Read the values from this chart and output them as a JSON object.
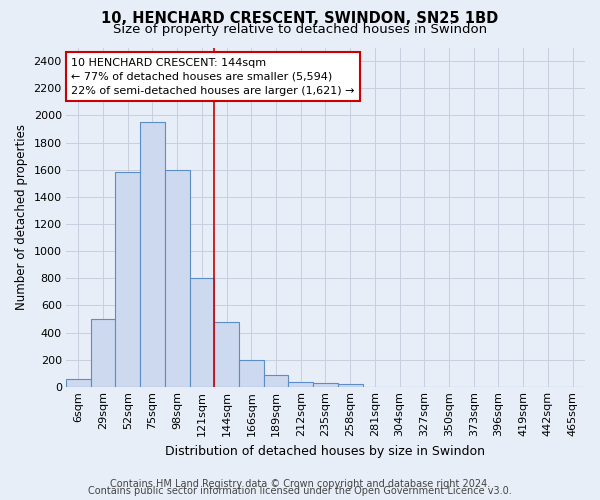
{
  "title1": "10, HENCHARD CRESCENT, SWINDON, SN25 1BD",
  "title2": "Size of property relative to detached houses in Swindon",
  "xlabel": "Distribution of detached houses by size in Swindon",
  "ylabel": "Number of detached properties",
  "categories": [
    "6sqm",
    "29sqm",
    "52sqm",
    "75sqm",
    "98sqm",
    "121sqm",
    "144sqm",
    "166sqm",
    "189sqm",
    "212sqm",
    "235sqm",
    "258sqm",
    "281sqm",
    "304sqm",
    "327sqm",
    "350sqm",
    "373sqm",
    "396sqm",
    "419sqm",
    "442sqm",
    "465sqm"
  ],
  "values": [
    55,
    500,
    1580,
    1950,
    1600,
    800,
    480,
    200,
    90,
    35,
    28,
    20,
    0,
    0,
    0,
    0,
    0,
    0,
    0,
    0,
    0
  ],
  "bar_color": "#ccd9ef",
  "bar_edge_color": "#5b8ec4",
  "vline_index": 6,
  "annotation_title": "10 HENCHARD CRESCENT: 144sqm",
  "annotation_line1": "← 77% of detached houses are smaller (5,594)",
  "annotation_line2": "22% of semi-detached houses are larger (1,621) →",
  "annotation_box_facecolor": "#ffffff",
  "annotation_box_edgecolor": "#cc0000",
  "vline_color": "#cc0000",
  "ylim": [
    0,
    2500
  ],
  "yticks": [
    0,
    200,
    400,
    600,
    800,
    1000,
    1200,
    1400,
    1600,
    1800,
    2000,
    2200,
    2400
  ],
  "footer1": "Contains HM Land Registry data © Crown copyright and database right 2024.",
  "footer2": "Contains public sector information licensed under the Open Government Licence v3.0.",
  "bg_color": "#e8eef8",
  "grid_color": "#c8d0e0",
  "title1_fontsize": 10.5,
  "title2_fontsize": 9.5,
  "xlabel_fontsize": 9,
  "ylabel_fontsize": 8.5,
  "tick_fontsize": 8,
  "annot_fontsize": 8,
  "footer_fontsize": 7
}
